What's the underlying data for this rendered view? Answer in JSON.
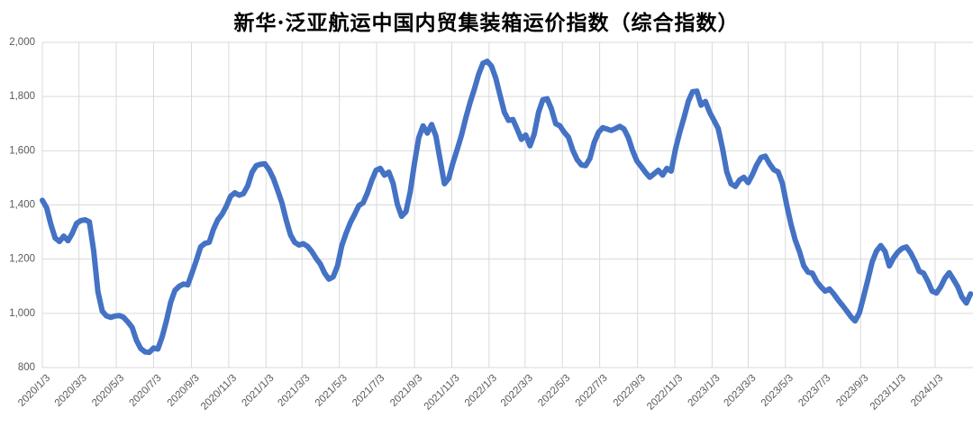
{
  "title": "新华·泛亚航运中国内贸集装箱运价指数（综合指数）",
  "chart_data": {
    "type": "line",
    "series_name": "综合指数",
    "frequency": "weekly",
    "start_date": "2020/1/3",
    "x_ticks": [
      "2020/1/3",
      "2020/3/3",
      "2020/5/3",
      "2020/7/3",
      "2020/9/3",
      "2020/11/3",
      "2021/1/3",
      "2021/3/3",
      "2021/5/3",
      "2021/7/3",
      "2021/9/3",
      "2021/11/3",
      "2022/1/3",
      "2022/3/3",
      "2022/5/3",
      "2022/7/3",
      "2022/9/3",
      "2022/11/3",
      "2023/1/3",
      "2023/3/3",
      "2023/5/3",
      "2023/7/3",
      "2023/9/3",
      "2023/11/3",
      "2024/1/3"
    ],
    "y_ticks": [
      800,
      1000,
      1200,
      1400,
      1600,
      1800,
      2000
    ],
    "y_tick_labels": [
      "800",
      "1,000",
      "1,200",
      "1,400",
      "1,600",
      "1,800",
      "2,000"
    ],
    "ylim": [
      800,
      2000
    ],
    "grid": true,
    "legend": "none",
    "colors": {
      "line": "#4472C4",
      "gridline": "#D9D9D9",
      "tick_text": "#595959",
      "title_text": "#000000",
      "background": "#FFFFFF"
    },
    "values": [
      1417,
      1390,
      1328,
      1278,
      1265,
      1285,
      1268,
      1295,
      1332,
      1342,
      1345,
      1338,
      1230,
      1080,
      1008,
      990,
      985,
      990,
      992,
      985,
      968,
      948,
      900,
      870,
      858,
      856,
      872,
      868,
      912,
      972,
      1040,
      1085,
      1100,
      1108,
      1105,
      1150,
      1195,
      1245,
      1258,
      1262,
      1310,
      1345,
      1365,
      1395,
      1432,
      1445,
      1436,
      1442,
      1470,
      1520,
      1545,
      1550,
      1552,
      1530,
      1498,
      1455,
      1408,
      1345,
      1290,
      1262,
      1252,
      1257,
      1247,
      1228,
      1203,
      1182,
      1148,
      1126,
      1135,
      1175,
      1250,
      1295,
      1335,
      1365,
      1398,
      1408,
      1445,
      1490,
      1528,
      1535,
      1510,
      1521,
      1480,
      1402,
      1358,
      1375,
      1448,
      1555,
      1648,
      1692,
      1665,
      1697,
      1655,
      1565,
      1478,
      1498,
      1556,
      1606,
      1658,
      1722,
      1778,
      1828,
      1882,
      1923,
      1930,
      1912,
      1868,
      1805,
      1742,
      1712,
      1715,
      1680,
      1642,
      1658,
      1618,
      1662,
      1742,
      1788,
      1792,
      1755,
      1700,
      1692,
      1668,
      1650,
      1602,
      1568,
      1548,
      1545,
      1572,
      1630,
      1668,
      1685,
      1680,
      1675,
      1682,
      1690,
      1680,
      1648,
      1600,
      1562,
      1542,
      1520,
      1502,
      1515,
      1528,
      1510,
      1535,
      1525,
      1605,
      1668,
      1722,
      1782,
      1818,
      1820,
      1768,
      1782,
      1742,
      1712,
      1682,
      1608,
      1522,
      1478,
      1468,
      1492,
      1502,
      1482,
      1512,
      1548,
      1575,
      1580,
      1552,
      1530,
      1522,
      1480,
      1400,
      1330,
      1270,
      1228,
      1175,
      1152,
      1148,
      1118,
      1098,
      1082,
      1090,
      1072,
      1050,
      1030,
      1010,
      988,
      972,
      1002,
      1062,
      1125,
      1190,
      1230,
      1250,
      1228,
      1175,
      1205,
      1226,
      1240,
      1245,
      1222,
      1192,
      1155,
      1148,
      1118,
      1082,
      1075,
      1098,
      1130,
      1150,
      1125,
      1098,
      1060,
      1038,
      1072
    ]
  }
}
